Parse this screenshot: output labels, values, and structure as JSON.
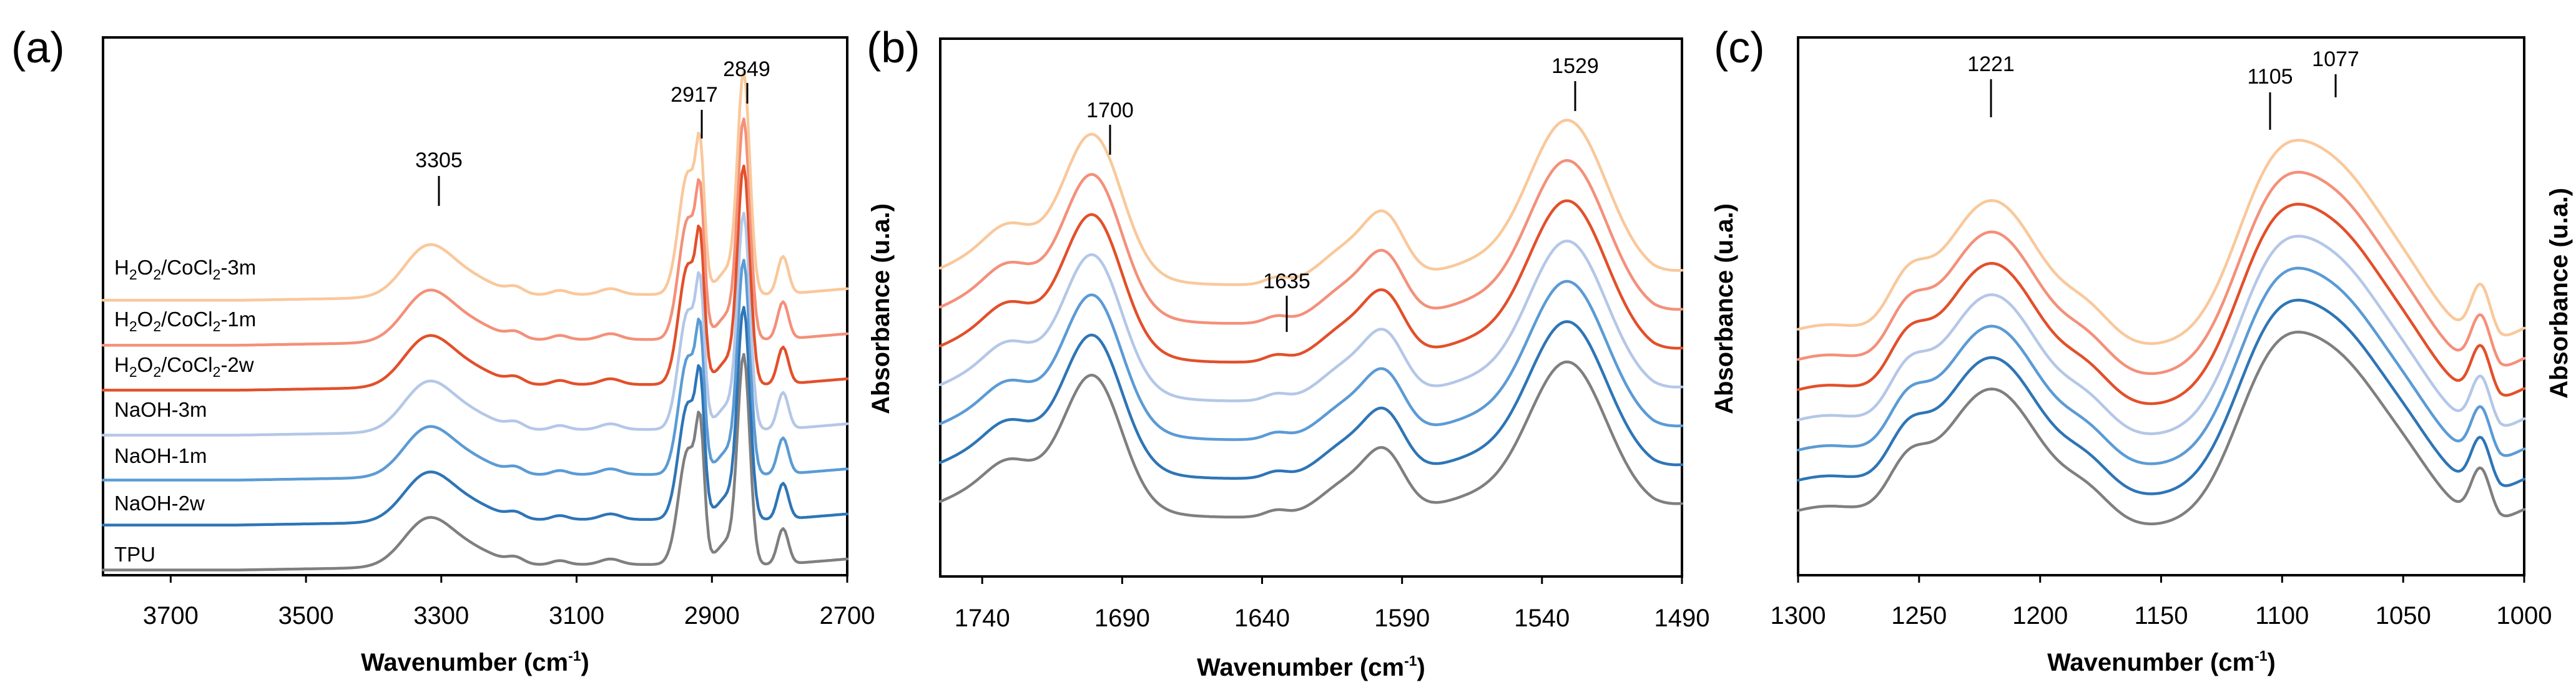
{
  "chart_data": [
    {
      "panel": "(a)",
      "type": "line",
      "xlabel": "Wavenumber (cm-1)",
      "xlim": [
        3800,
        2700
      ],
      "x_ticks": [
        "3700",
        "3500",
        "3300",
        "3100",
        "2900",
        "2700"
      ],
      "annotations": [
        "3305",
        "2917",
        "2849"
      ],
      "peaks": [
        3305,
        2917,
        2849
      ]
    },
    {
      "panel": "(b)",
      "type": "line",
      "xlabel": "Wavenumber (cm-1)",
      "ylabel": "Absorbance (u.a.)",
      "xlim": [
        1755,
        1490
      ],
      "x_ticks": [
        "1740",
        "1690",
        "1640",
        "1590",
        "1540",
        "1490"
      ],
      "annotations": [
        "1700",
        "1635",
        "1529"
      ],
      "peaks": [
        1700,
        1635,
        1529
      ]
    },
    {
      "panel": "(c)",
      "type": "line",
      "xlabel": "Wavenumber (cm-1)",
      "ylabel": "Absorbance (u.a.)",
      "xlim": [
        1300,
        1000
      ],
      "x_ticks": [
        "1300",
        "1250",
        "1200",
        "1150",
        "1100",
        "1050",
        "1000"
      ],
      "annotations": [
        "1221",
        "1105",
        "1077"
      ],
      "peaks": [
        1221,
        1105,
        1077
      ]
    }
  ],
  "series": [
    {
      "name": "TPU",
      "label_main": "TPU",
      "color": "#7f7f7f"
    },
    {
      "name": "NaOH-2w",
      "label_main": "NaOH-2w",
      "color": "#2e75b6"
    },
    {
      "name": "NaOH-1m",
      "label_main": "NaOH-1m",
      "color": "#5b9bd5"
    },
    {
      "name": "NaOH-3m",
      "label_main": "NaOH-3m",
      "color": "#b4c7e7"
    },
    {
      "name": "H2O2/CoCl2-2w",
      "label_main": "H",
      "sub1": "2",
      "mid": "O",
      "sub2": "2",
      "mid2": "/CoCl",
      "sub3": "2",
      "tail": "-2w",
      "color": "#e2502a"
    },
    {
      "name": "H2O2/CoCl2-1m",
      "label_main": "H",
      "sub1": "2",
      "mid": "O",
      "sub2": "2",
      "mid2": "/CoCl",
      "sub3": "2",
      "tail": "-1m",
      "color": "#f4907a"
    },
    {
      "name": "H2O2/CoCl2-3m",
      "label_main": "H",
      "sub1": "2",
      "mid": "O",
      "sub2": "2",
      "mid2": "/CoCl",
      "sub3": "2",
      "tail": "-3m",
      "color": "#f9c89b"
    }
  ],
  "axis_text": {
    "xlabel_main": "Wavenumber (cm",
    "xlabel_sup": "-1",
    "xlabel_end": ")",
    "ylabel": "Absorbance (u.a.)"
  }
}
